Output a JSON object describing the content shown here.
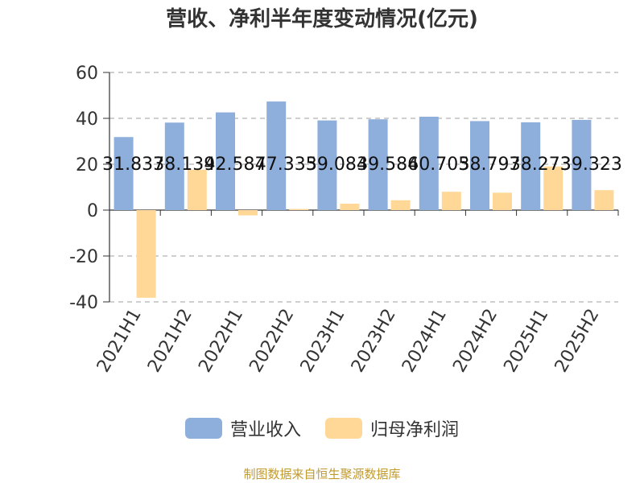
{
  "chart_data": {
    "type": "bar",
    "title": "营收、净利半年度变动情况(亿元)",
    "categories": [
      "2021H1",
      "2021H2",
      "2022H1",
      "2022H2",
      "2023H1",
      "2023H2",
      "2024H1",
      "2024H2",
      "2025H1",
      "2025H2"
    ],
    "series": [
      {
        "name": "营业收入",
        "color": "#8eaedb",
        "values": [
          31.837,
          38.139,
          42.587,
          47.335,
          39.084,
          39.586,
          40.705,
          38.797,
          38.273,
          39.323
        ],
        "labels": [
          "31.837",
          "38.139",
          "42.587",
          "47.335",
          "39.084",
          "39.586",
          "40.705",
          "38.797",
          "38.273",
          "39.323"
        ]
      },
      {
        "name": "归母净利润",
        "color": "#ffd898",
        "values": [
          -38.2,
          17.6,
          -2.3,
          0.5,
          2.8,
          4.3,
          8.0,
          7.6,
          19.0,
          8.7
        ]
      }
    ],
    "ylim": [
      -40,
      60
    ],
    "yticks": [
      "-40",
      "-20",
      "0",
      "20",
      "40",
      "60"
    ],
    "grid": true,
    "legend": "bottom"
  },
  "source": "制图数据来自恒生聚源数据库"
}
